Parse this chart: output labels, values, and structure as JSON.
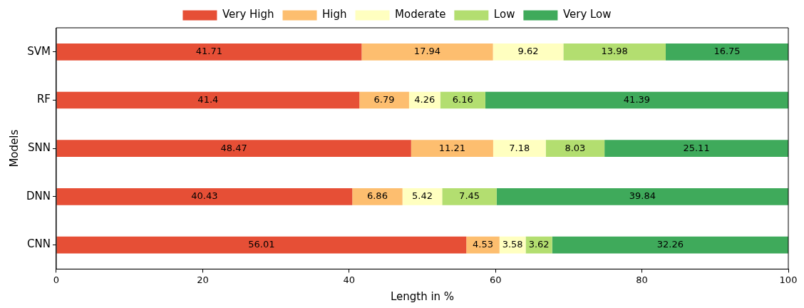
{
  "chart_data": {
    "type": "bar",
    "orientation": "horizontal",
    "stacked": true,
    "xlabel": "Length in %",
    "ylabel": "Models",
    "categories": [
      "SVM",
      "RF",
      "SNN",
      "DNN",
      "CNN"
    ],
    "series": [
      {
        "name": "Very High",
        "color": "#e64f36",
        "values": [
          41.71,
          41.4,
          48.47,
          40.43,
          56.01
        ]
      },
      {
        "name": "High",
        "color": "#fdbe6f",
        "values": [
          17.94,
          6.79,
          11.21,
          6.86,
          4.53
        ]
      },
      {
        "name": "Moderate",
        "color": "#ffffc0",
        "values": [
          9.62,
          4.26,
          7.18,
          5.42,
          3.58
        ]
      },
      {
        "name": "Low",
        "color": "#b3de70",
        "values": [
          13.98,
          6.16,
          8.03,
          7.45,
          3.62
        ]
      },
      {
        "name": "Very Low",
        "color": "#3faa5b",
        "values": [
          16.75,
          41.39,
          25.11,
          39.84,
          32.26
        ]
      }
    ],
    "xlim": [
      0,
      100
    ],
    "xticks": [
      0,
      20,
      40,
      60,
      80,
      100
    ],
    "grid": false,
    "legend": "top",
    "data_labels": true
  }
}
